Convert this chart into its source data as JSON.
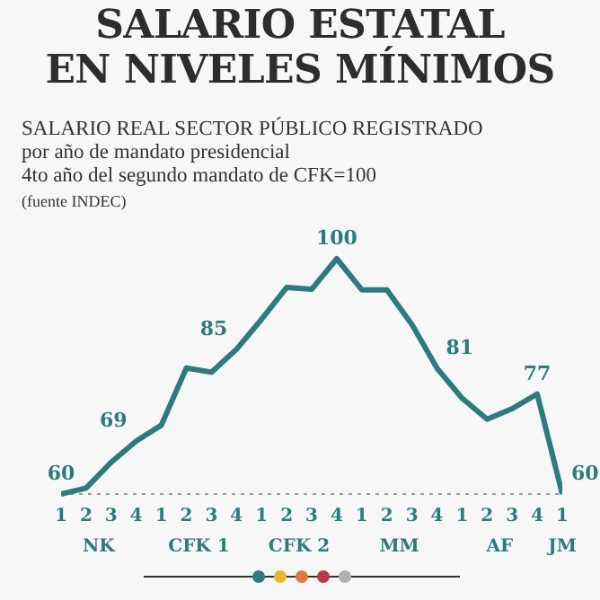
{
  "chart_data": {
    "type": "line",
    "title": "SALARIO ESTATAL\nEN NIVELES MÍNIMOS",
    "subtitle": "SALARIO REAL SECTOR PÚBLICO REGISTRADO\npor año de mandato presidencial\n4to año del segundo mandato de CFK=100",
    "annotations": [
      "(fuente INDEC)",
      "NK",
      "CFK 1",
      "CFK 2",
      "MM",
      "AF",
      "JM"
    ],
    "categories": [
      "1",
      "2",
      "3",
      "4",
      "1",
      "2",
      "3",
      "4",
      "1",
      "2",
      "3",
      "4",
      "1",
      "2",
      "3",
      "4",
      "1",
      "2",
      "3",
      "4",
      "1"
    ],
    "series": [
      {
        "color": "#2e7a7c",
        "values": [
          60,
          61,
          65.4,
          69,
          71.7,
          81.4,
          80.7,
          84.6,
          89.7,
          95.1,
          94.8,
          100,
          94.7,
          94.7,
          88.8,
          81.4,
          76.3,
          72.7,
          74.5,
          77,
          60
        ],
        "value_labels": [
          "60",
          null,
          null,
          "69",
          null,
          null,
          null,
          "85",
          null,
          null,
          null,
          "100",
          null,
          null,
          null,
          "81",
          null,
          null,
          null,
          "77",
          "60"
        ]
      }
    ],
    "ref_lines": [
      {
        "axis": "y",
        "value": 60,
        "color": "#9a9a9a",
        "line_style": "dotted"
      }
    ],
    "marker": "none",
    "line_style": "solid"
  }
}
